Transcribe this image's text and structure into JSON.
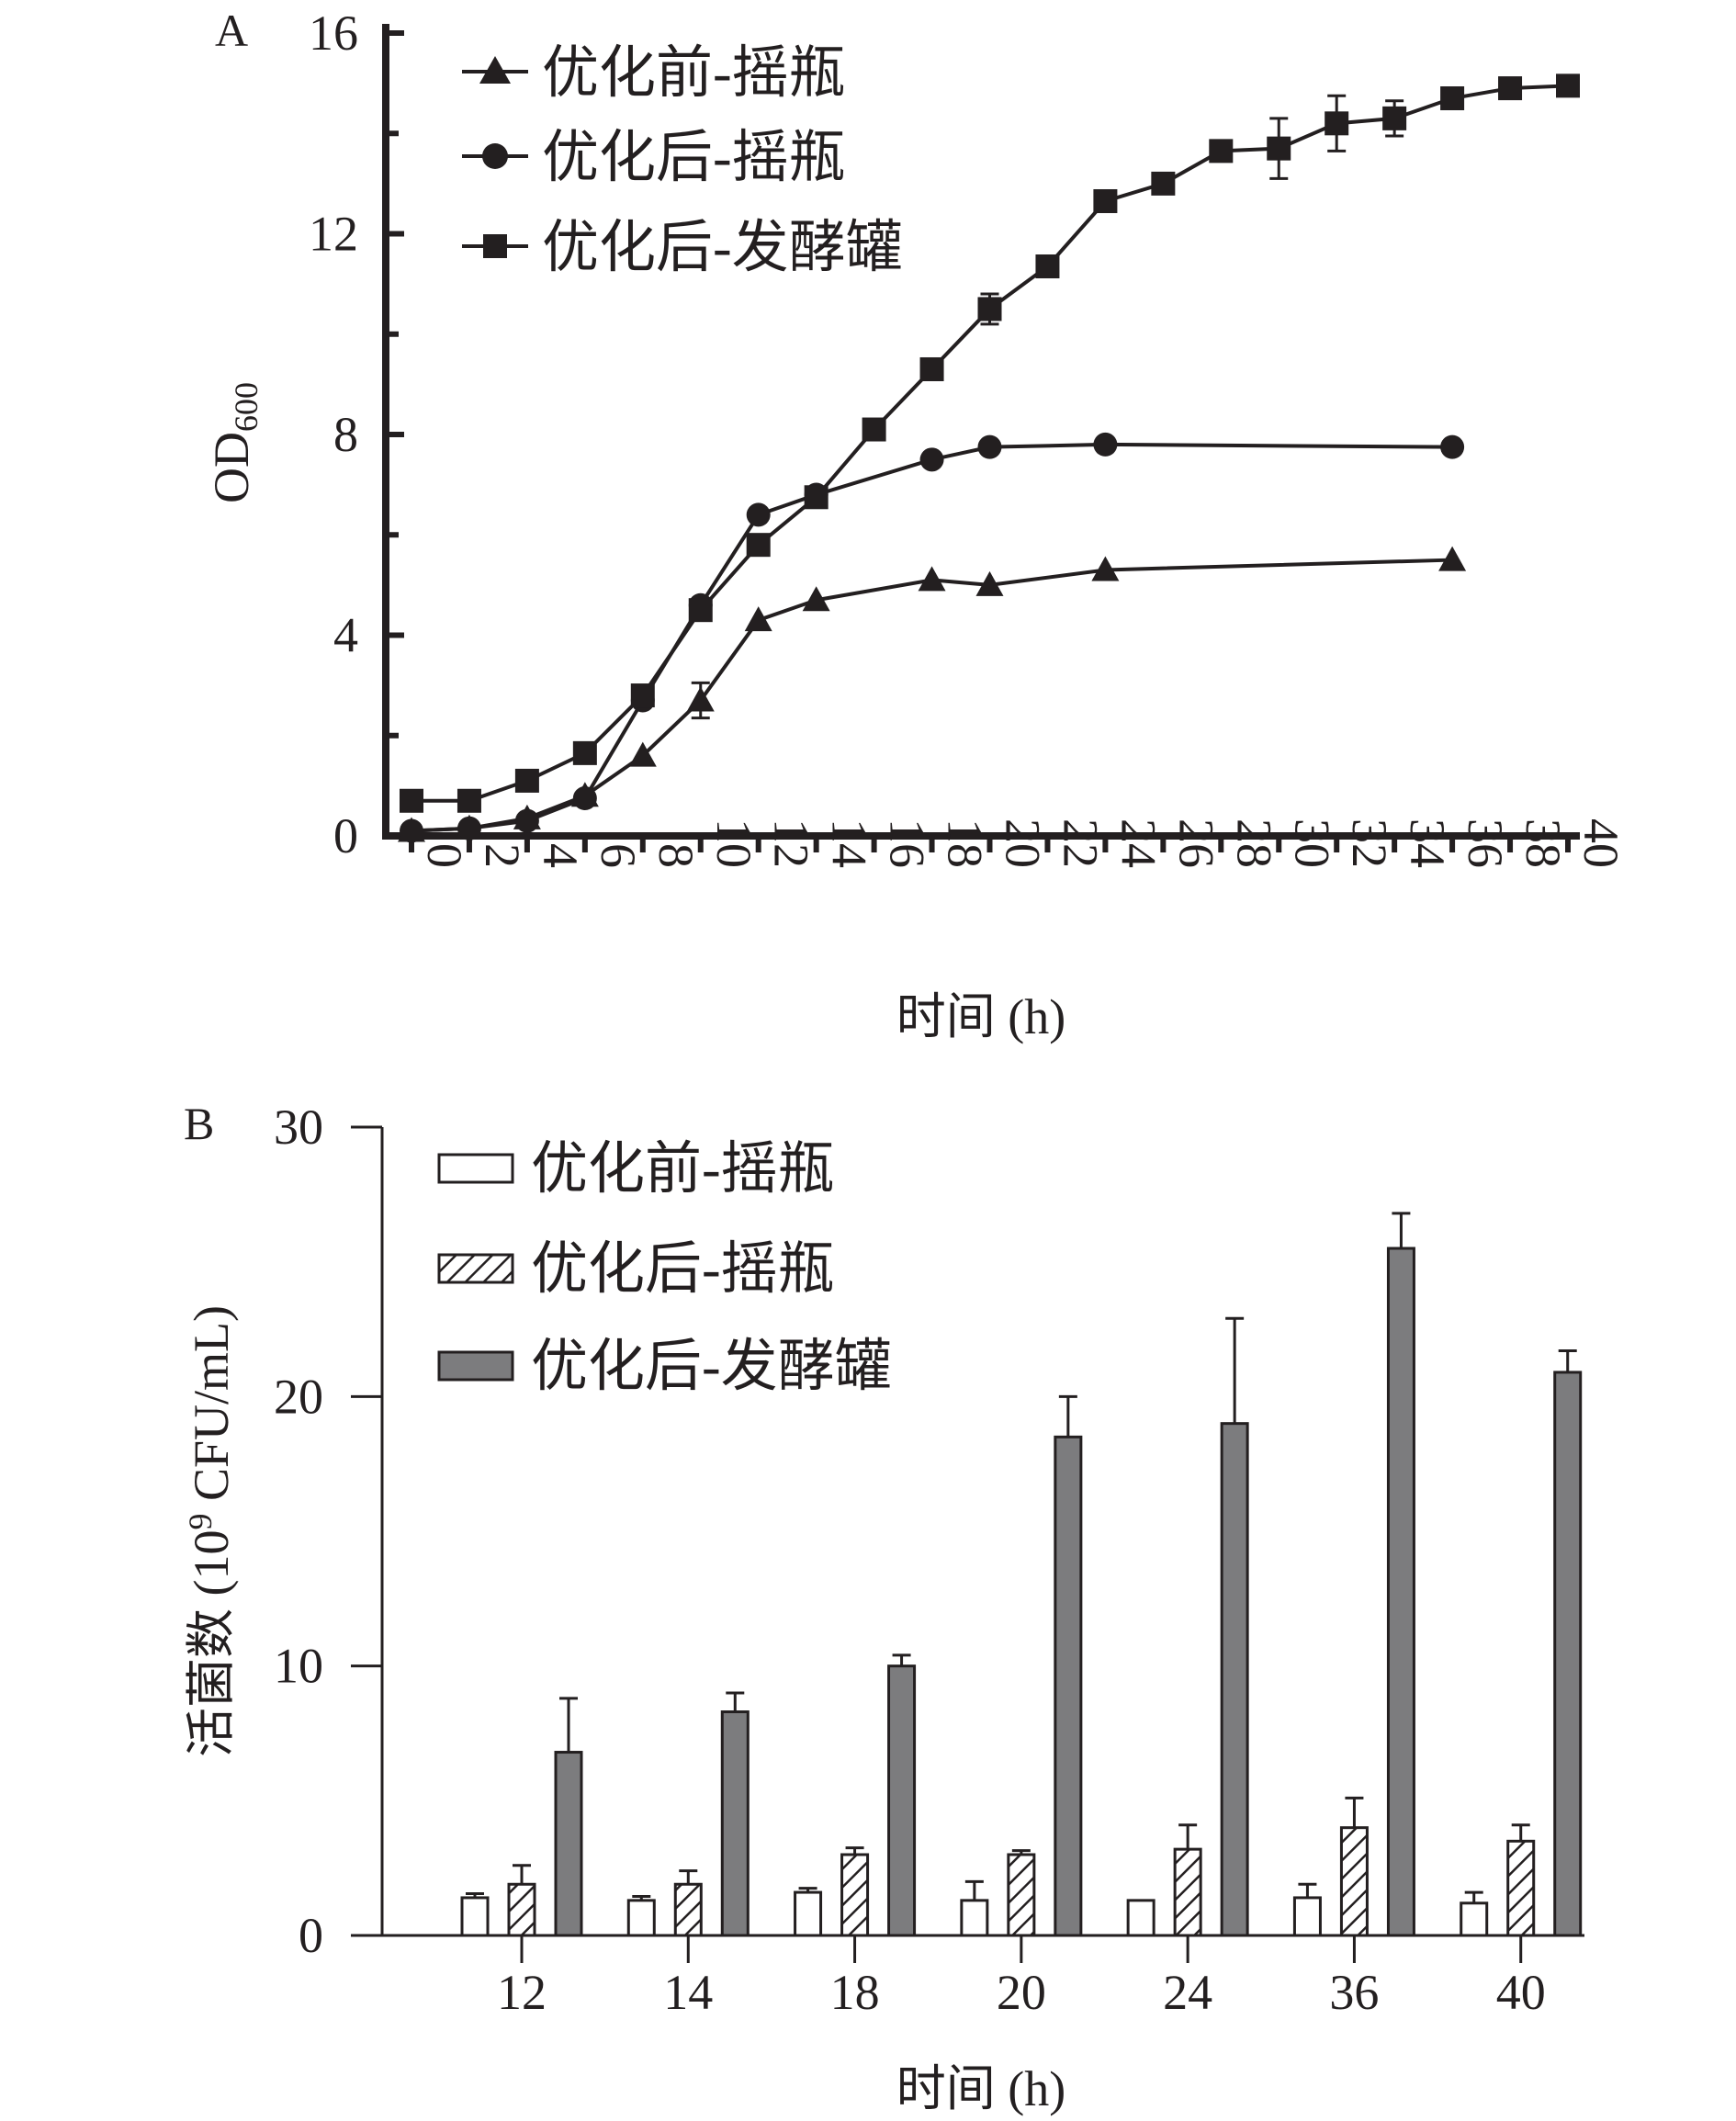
{
  "colors": {
    "ink": "#231f20",
    "bar_fermenter": "#7c7c7e",
    "bar_open": "#ffffff"
  },
  "panel_a": {
    "label": "A",
    "chart_data": {
      "type": "line",
      "title": "",
      "xlabel": "时间 (h)",
      "ylabel_main": "OD",
      "ylabel_sub": "600",
      "xlim": [
        0,
        40
      ],
      "ylim": [
        0,
        16
      ],
      "x_ticks": [
        "0",
        "2",
        "4",
        "6",
        "8",
        "10",
        "12",
        "14",
        "16",
        "18",
        "20",
        "22",
        "24",
        "26",
        "28",
        "30",
        "32",
        "34",
        "36",
        "38",
        "40"
      ],
      "y_ticks": [
        "0",
        "4",
        "8",
        "12",
        "16"
      ],
      "series": [
        {
          "name": "优化前-摇瓶",
          "marker": "triangle",
          "x": [
            0,
            2,
            4,
            6,
            8,
            10,
            12,
            14,
            18,
            20,
            24,
            36
          ],
          "y": [
            0.1,
            0.15,
            0.35,
            0.8,
            1.6,
            2.7,
            4.3,
            4.7,
            5.1,
            5.0,
            5.3,
            5.5
          ],
          "err": [
            0,
            0,
            0,
            0,
            0,
            0.35,
            0,
            0,
            0,
            0,
            0,
            0
          ]
        },
        {
          "name": "优化后-摇瓶",
          "marker": "circle",
          "x": [
            0,
            2,
            4,
            6,
            8,
            10,
            12,
            14,
            18,
            20,
            24,
            36
          ],
          "y": [
            0.1,
            0.15,
            0.3,
            0.75,
            2.7,
            4.6,
            6.4,
            6.8,
            7.5,
            7.75,
            7.8,
            7.75
          ],
          "err": [
            0,
            0,
            0,
            0,
            0,
            0,
            0,
            0,
            0,
            0,
            0,
            0
          ]
        },
        {
          "name": "优化后-发酵罐",
          "marker": "square",
          "x": [
            0,
            2,
            4,
            6,
            8,
            10,
            12,
            14,
            16,
            18,
            20,
            22,
            24,
            26,
            28,
            30,
            32,
            34,
            36,
            38,
            40
          ],
          "y": [
            0.7,
            0.7,
            1.1,
            1.65,
            2.8,
            4.5,
            5.8,
            6.75,
            8.1,
            9.3,
            10.5,
            11.35,
            12.65,
            13.0,
            13.65,
            13.7,
            14.2,
            14.3,
            14.7,
            14.9,
            14.95
          ],
          "err": [
            0,
            0,
            0,
            0,
            0,
            0,
            0,
            0,
            0,
            0,
            0.3,
            0,
            0,
            0,
            0,
            0.6,
            0.55,
            0.35,
            0,
            0,
            0
          ]
        }
      ],
      "legend": "top-left"
    }
  },
  "panel_b": {
    "label": "B",
    "chart_data": {
      "type": "bar",
      "title": "",
      "xlabel": "时间 (h)",
      "ylabel": "活菌数 (10⁹ CFU/mL)",
      "ylabel_main": "活菌数 (10",
      "ylabel_sup": "9",
      "ylabel_tail": " CFU/mL)",
      "ylim": [
        0,
        30
      ],
      "y_ticks": [
        "0",
        "10",
        "20",
        "30"
      ],
      "categories": [
        "12",
        "14",
        "18",
        "20",
        "24",
        "36",
        "40"
      ],
      "series": [
        {
          "name": "优化前-摇瓶",
          "fill": "white",
          "values": [
            1.4,
            1.3,
            1.6,
            1.3,
            1.3,
            1.4,
            1.2
          ],
          "err": [
            0.15,
            0.15,
            0.15,
            0.7,
            0,
            0.5,
            0.4
          ]
        },
        {
          "name": "优化后-摇瓶",
          "fill": "hatched",
          "values": [
            1.9,
            1.9,
            3.0,
            3.0,
            3.2,
            4.0,
            3.5
          ],
          "err": [
            0.7,
            0.5,
            0.25,
            0.15,
            0.9,
            1.1,
            0.6
          ]
        },
        {
          "name": "优化后-发酵罐",
          "fill": "gray",
          "values": [
            6.8,
            8.3,
            10.0,
            18.5,
            19.0,
            25.5,
            20.9
          ],
          "err": [
            2.0,
            0.7,
            0.4,
            1.5,
            3.9,
            1.3,
            0.8
          ]
        }
      ],
      "legend": "top-left"
    }
  }
}
